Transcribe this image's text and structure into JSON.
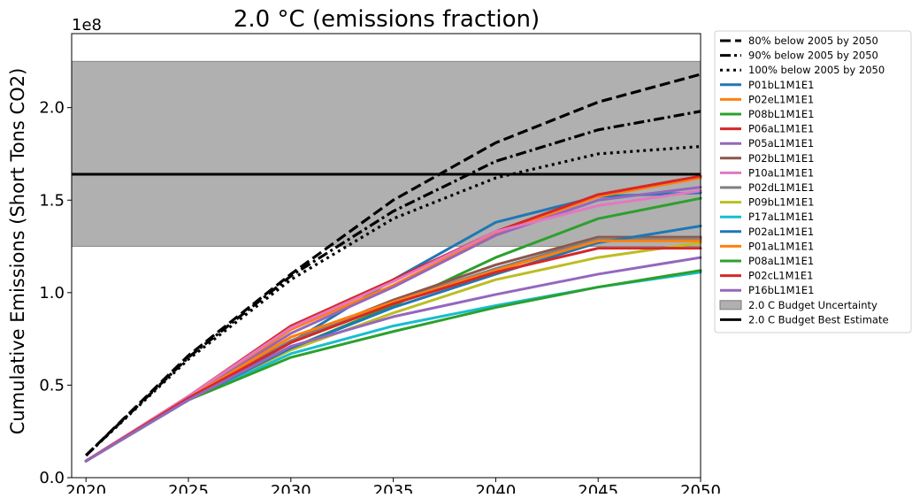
{
  "chart_data": {
    "type": "line",
    "title": "2.0 °C (emissions fraction)",
    "xlabel": "",
    "ylabel": "Cumulative Emissions (Short Tons CO2)",
    "y_offset_label": "1e8",
    "xlim": [
      2019.3,
      2050
    ],
    "ylim": [
      0.0,
      2.4
    ],
    "x_ticks": [
      2020,
      2025,
      2030,
      2035,
      2040,
      2045,
      2050
    ],
    "x_tick_labels": [
      "2020",
      "2025",
      "2030",
      "2035",
      "2040",
      "2045",
      "2050"
    ],
    "y_ticks": [
      0.0,
      0.5,
      1.0,
      1.5,
      2.0
    ],
    "y_tick_labels": [
      "0.0",
      "0.5",
      "1.0",
      "1.5",
      "2.0"
    ],
    "grid": false,
    "legend_position": "outside-right",
    "budget_band": {
      "name": "2.0 C Budget Uncertainty",
      "y_low": 1.25,
      "y_high": 2.25,
      "color": "#b0b0b0"
    },
    "budget_best": {
      "name": "2.0 C Budget Best Estimate",
      "y": 1.64,
      "color": "#000000"
    },
    "reference_series": [
      {
        "name": "80% below 2005 by 2050",
        "dash": "dashed",
        "color": "#000000",
        "x": [
          2020,
          2025,
          2030,
          2035,
          2040,
          2045,
          2050
        ],
        "values": [
          0.12,
          0.66,
          1.1,
          1.5,
          1.81,
          2.03,
          2.18
        ]
      },
      {
        "name": "90% below 2005 by 2050",
        "dash": "dashdot",
        "color": "#000000",
        "x": [
          2020,
          2025,
          2030,
          2035,
          2040,
          2045,
          2050
        ],
        "values": [
          0.12,
          0.65,
          1.09,
          1.44,
          1.71,
          1.88,
          1.98
        ]
      },
      {
        "name": "100% below 2005 by 2050",
        "dash": "dotted",
        "color": "#000000",
        "x": [
          2020,
          2025,
          2030,
          2035,
          2040,
          2045,
          2050
        ],
        "values": [
          0.12,
          0.64,
          1.07,
          1.4,
          1.62,
          1.75,
          1.79
        ]
      }
    ],
    "series": [
      {
        "name": "P01bL1M1E1",
        "color": "#1f77b4",
        "x": [
          2020,
          2025,
          2030,
          2035,
          2040,
          2045,
          2050
        ],
        "values": [
          0.09,
          0.42,
          0.73,
          1.07,
          1.38,
          1.52,
          1.54
        ]
      },
      {
        "name": "P02eL1M1E1",
        "color": "#ff7f0e",
        "x": [
          2020,
          2025,
          2030,
          2035,
          2040,
          2045,
          2050
        ],
        "values": [
          0.09,
          0.43,
          0.8,
          1.04,
          1.32,
          1.52,
          1.62
        ]
      },
      {
        "name": "P08bL1M1E1",
        "color": "#2ca02c",
        "x": [
          2020,
          2025,
          2030,
          2035,
          2040,
          2045,
          2050
        ],
        "values": [
          0.09,
          0.42,
          0.7,
          0.93,
          1.19,
          1.4,
          1.51
        ]
      },
      {
        "name": "P06aL1M1E1",
        "color": "#d62728",
        "x": [
          2020,
          2025,
          2030,
          2035,
          2040,
          2045,
          2050
        ],
        "values": [
          0.09,
          0.44,
          0.82,
          1.07,
          1.33,
          1.53,
          1.63
        ]
      },
      {
        "name": "P05aL1M1E1",
        "color": "#9467bd",
        "x": [
          2020,
          2025,
          2030,
          2035,
          2040,
          2045,
          2050
        ],
        "values": [
          0.09,
          0.43,
          0.78,
          1.03,
          1.31,
          1.5,
          1.57
        ]
      },
      {
        "name": "P02bL1M1E1",
        "color": "#8c564b",
        "x": [
          2020,
          2025,
          2030,
          2035,
          2040,
          2045,
          2050
        ],
        "values": [
          0.09,
          0.43,
          0.74,
          0.96,
          1.15,
          1.3,
          1.3
        ]
      },
      {
        "name": "P10aL1M1E1",
        "color": "#e377c2",
        "x": [
          2020,
          2025,
          2030,
          2035,
          2040,
          2045,
          2050
        ],
        "values": [
          0.09,
          0.44,
          0.81,
          1.06,
          1.33,
          1.47,
          1.55
        ]
      },
      {
        "name": "P02dL1M1E1",
        "color": "#7f7f7f",
        "x": [
          2020,
          2025,
          2030,
          2035,
          2040,
          2045,
          2050
        ],
        "values": [
          0.09,
          0.43,
          0.74,
          0.95,
          1.13,
          1.29,
          1.29
        ]
      },
      {
        "name": "P09bL1M1E1",
        "color": "#bcbd22",
        "x": [
          2020,
          2025,
          2030,
          2035,
          2040,
          2045,
          2050
        ],
        "values": [
          0.09,
          0.42,
          0.69,
          0.89,
          1.07,
          1.19,
          1.27
        ]
      },
      {
        "name": "P17aL1M1E1",
        "color": "#17becf",
        "x": [
          2020,
          2025,
          2030,
          2035,
          2040,
          2045,
          2050
        ],
        "values": [
          0.09,
          0.42,
          0.67,
          0.82,
          0.93,
          1.03,
          1.11
        ]
      },
      {
        "name": "P02aL1M1E1",
        "color": "#1f77b4",
        "x": [
          2020,
          2025,
          2030,
          2035,
          2040,
          2045,
          2050
        ],
        "values": [
          0.09,
          0.42,
          0.7,
          0.92,
          1.1,
          1.27,
          1.36
        ]
      },
      {
        "name": "P01aL1M1E1",
        "color": "#ff7f0e",
        "x": [
          2020,
          2025,
          2030,
          2035,
          2040,
          2045,
          2050
        ],
        "values": [
          0.09,
          0.43,
          0.76,
          0.95,
          1.12,
          1.28,
          1.28
        ]
      },
      {
        "name": "P08aL1M1E1",
        "color": "#2ca02c",
        "x": [
          2020,
          2025,
          2030,
          2035,
          2040,
          2045,
          2050
        ],
        "values": [
          0.09,
          0.42,
          0.65,
          0.79,
          0.92,
          1.03,
          1.12
        ]
      },
      {
        "name": "P02cL1M1E1",
        "color": "#d62728",
        "x": [
          2020,
          2025,
          2030,
          2035,
          2040,
          2045,
          2050
        ],
        "values": [
          0.09,
          0.43,
          0.73,
          0.94,
          1.11,
          1.24,
          1.24
        ]
      },
      {
        "name": "P16bL1M1E1",
        "color": "#9467bd",
        "x": [
          2020,
          2025,
          2030,
          2035,
          2040,
          2045,
          2050
        ],
        "values": [
          0.09,
          0.42,
          0.71,
          0.87,
          0.99,
          1.1,
          1.19
        ]
      }
    ]
  }
}
